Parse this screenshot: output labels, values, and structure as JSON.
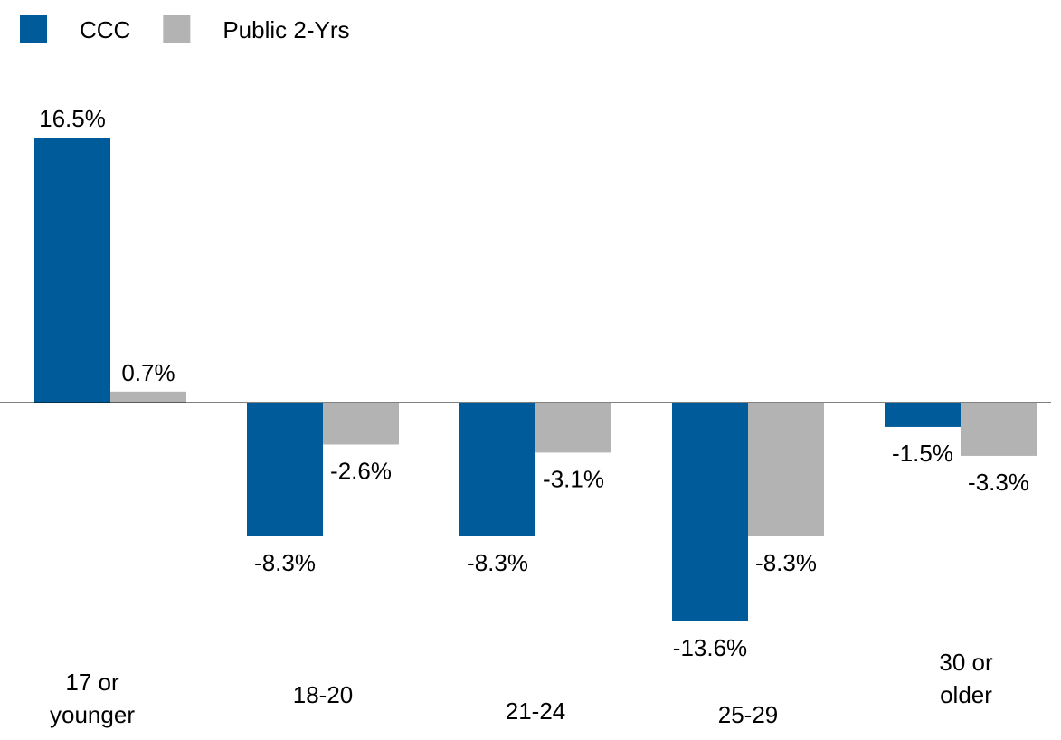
{
  "chart_data": {
    "type": "bar",
    "categories": [
      "17 or younger",
      "18-20",
      "21-24",
      "25-29",
      "30 or older"
    ],
    "series": [
      {
        "name": "CCC",
        "color": "#005b9a",
        "values": [
          16.5,
          -8.3,
          -8.3,
          -13.6,
          -1.5
        ],
        "value_labels": [
          "16.5%",
          "-8.3%",
          "-8.3%",
          "-13.6%",
          "-1.5%"
        ]
      },
      {
        "name": "Public 2-Yrs",
        "color": "#b3b3b3",
        "values": [
          0.7,
          -2.6,
          -3.1,
          -8.3,
          -3.3
        ],
        "value_labels": [
          "0.7%",
          "-2.6%",
          "-3.1%",
          "-8.3%",
          "-3.3%"
        ]
      }
    ],
    "legend": "top-left"
  }
}
